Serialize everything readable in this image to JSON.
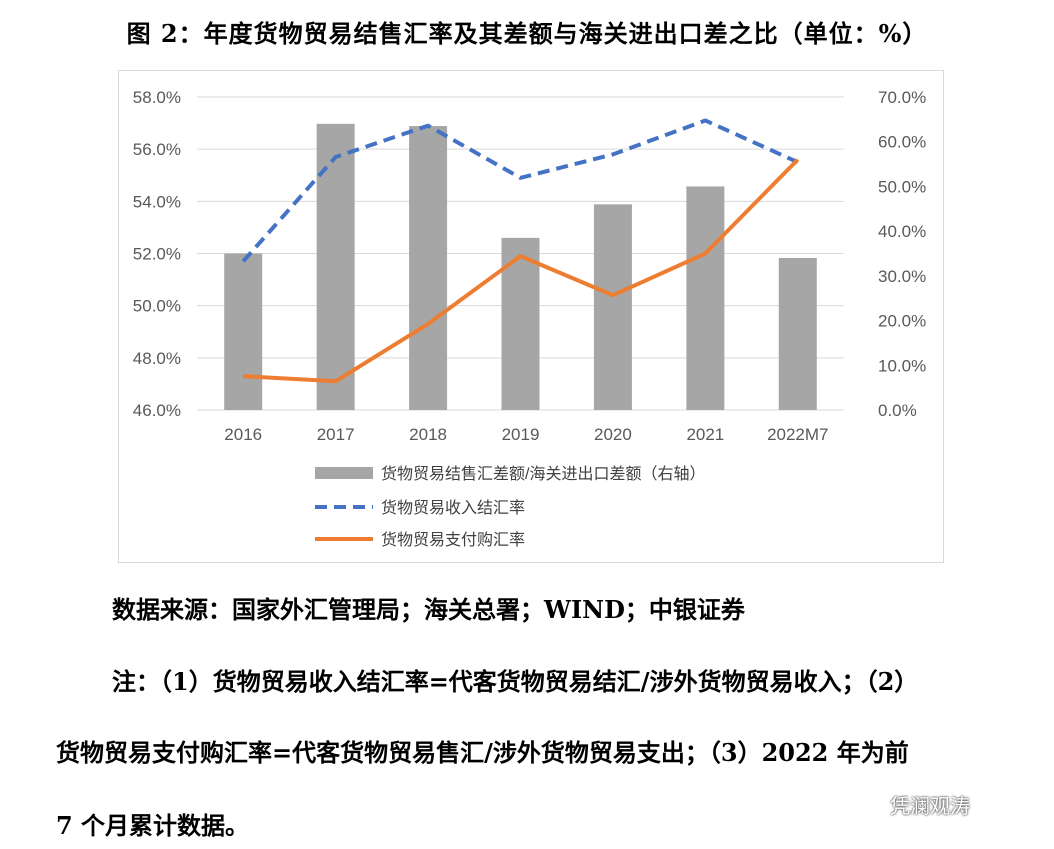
{
  "figure_title": "图 2：年度货物贸易结售汇率及其差额与海关进出口差之比（单位：%）",
  "source": "数据来源：国家外汇管理局；海关总署；WIND；中银证券",
  "notes": {
    "line1": "注：（1）货物贸易收入结汇率=代客货物贸易结汇/涉外货物贸易收入；（2）",
    "line2": "货物贸易支付购汇率=代客货物贸易售汇/涉外货物贸易支出；（3）2022 年为前",
    "line3": "7 个月累计数据。"
  },
  "watermark": "凭澜观涛",
  "watermark_icon": "wechat-icon",
  "chart_data": {
    "type": "bar",
    "categories": [
      "2016",
      "2017",
      "2018",
      "2019",
      "2020",
      "2021",
      "2022M7"
    ],
    "series": [
      {
        "name": "货物贸易结售汇差额/海关进出口差额（右轴）",
        "kind": "bar",
        "axis": "right",
        "values": [
          35.0,
          64.0,
          63.5,
          38.5,
          46.0,
          50.0,
          34.0
        ],
        "color": "#a6a6a6"
      },
      {
        "name": "货物贸易收入结汇率",
        "kind": "line",
        "style": "dashed",
        "axis": "left",
        "values": [
          51.7,
          55.7,
          56.9,
          54.9,
          55.8,
          57.1,
          55.5
        ],
        "color": "#4472c4"
      },
      {
        "name": "货物贸易支付购汇率",
        "kind": "line",
        "style": "solid",
        "axis": "left",
        "values": [
          47.3,
          47.1,
          49.3,
          51.9,
          50.4,
          52.0,
          55.6
        ],
        "color": "#ed7d31"
      }
    ],
    "left_axis": {
      "min": 46,
      "max": 58,
      "step": 2,
      "ticks": [
        "46.0%",
        "48.0%",
        "50.0%",
        "52.0%",
        "54.0%",
        "56.0%",
        "58.0%"
      ]
    },
    "right_axis": {
      "min": 0,
      "max": 70,
      "step": 10,
      "ticks": [
        "0.0%",
        "10.0%",
        "20.0%",
        "30.0%",
        "40.0%",
        "50.0%",
        "60.0%",
        "70.0%"
      ]
    },
    "grid": true,
    "legend_position": "bottom"
  }
}
